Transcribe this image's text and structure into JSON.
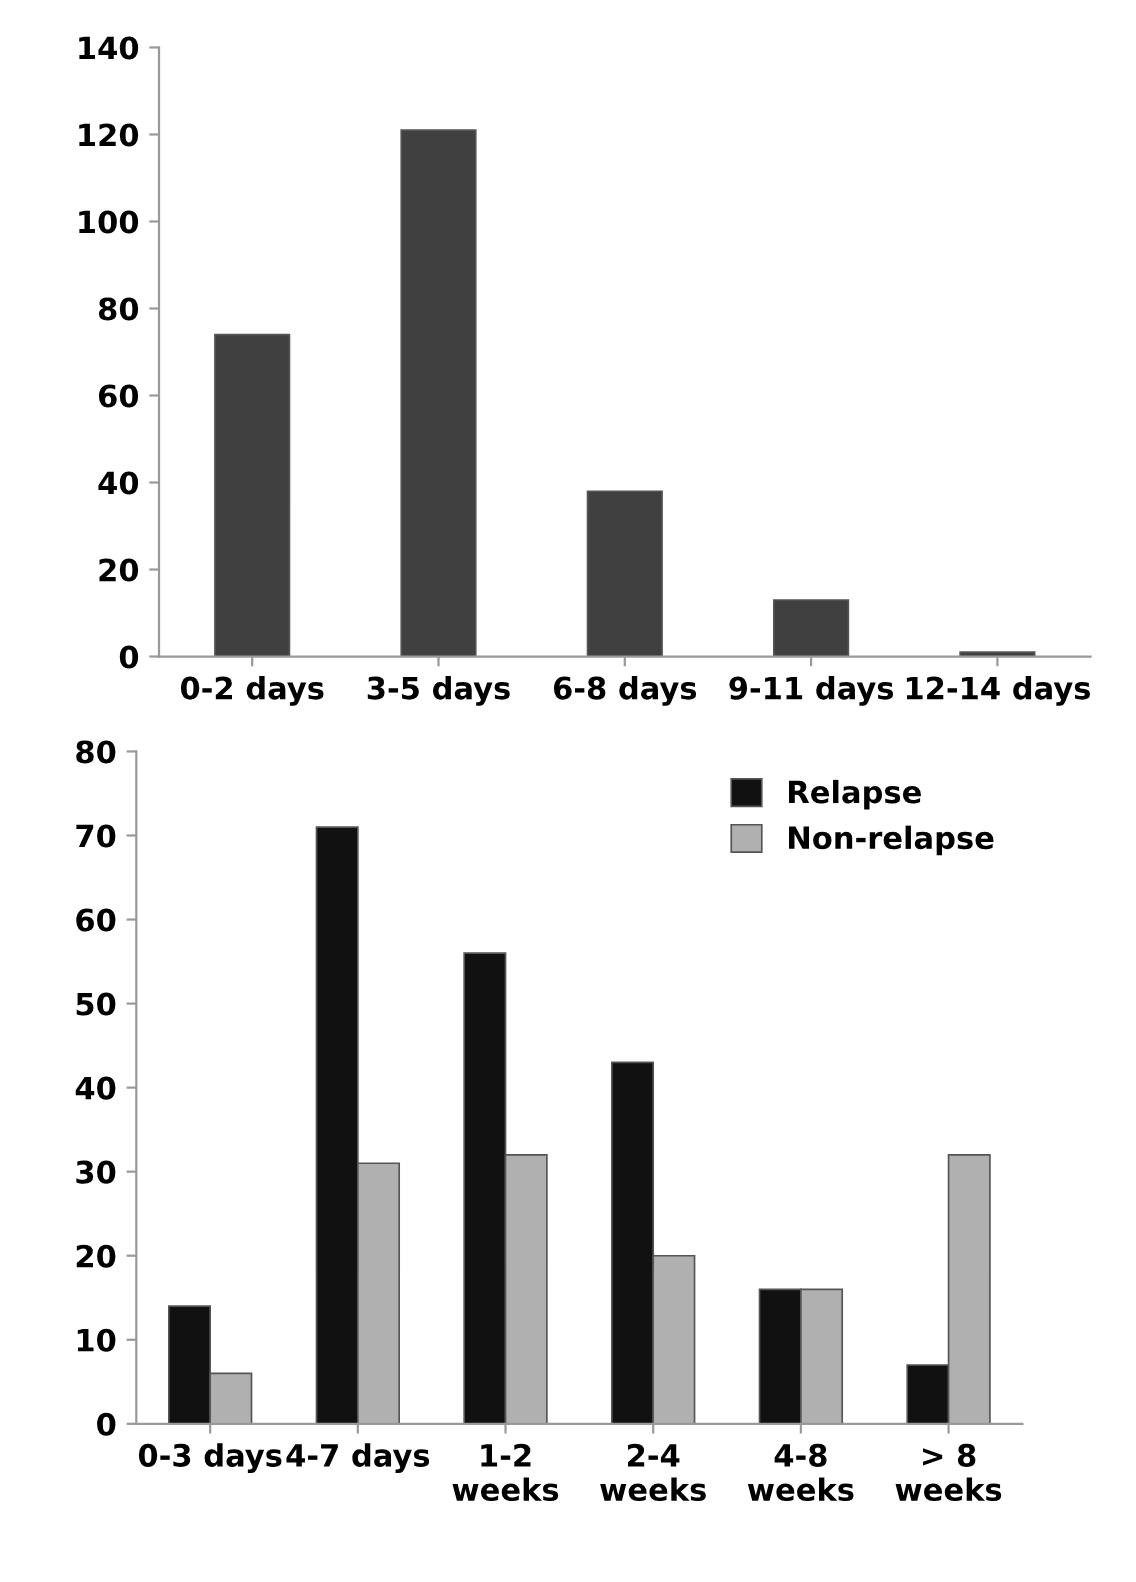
{
  "chart_data": [
    {
      "type": "bar",
      "categories": [
        "0-2 days",
        "3-5 days",
        "6-8 days",
        "9-11 days",
        "12-14 days"
      ],
      "values": [
        74,
        121,
        38,
        13,
        1
      ],
      "color": "#404040",
      "ylim": [
        0,
        140
      ],
      "yticks": [
        0,
        20,
        40,
        60,
        80,
        100,
        120,
        140
      ],
      "grid": false,
      "legend": false
    },
    {
      "type": "bar",
      "categories": [
        "0-3 days",
        "4-7 days",
        "1-2\nweeks",
        "2-4\nweeks",
        "4-8\nweeks",
        "> 8\nweeks"
      ],
      "series": [
        {
          "name": "Relapse",
          "color": "#111111",
          "values": [
            14,
            71,
            56,
            43,
            16,
            7
          ]
        },
        {
          "name": "Non-relapse",
          "color": "#b0b0b0",
          "values": [
            6,
            31,
            32,
            20,
            16,
            32
          ]
        }
      ],
      "ylim": [
        0,
        80
      ],
      "yticks": [
        0,
        10,
        20,
        30,
        40,
        50,
        60,
        70,
        80
      ],
      "grid": false,
      "legend": "top right"
    }
  ]
}
